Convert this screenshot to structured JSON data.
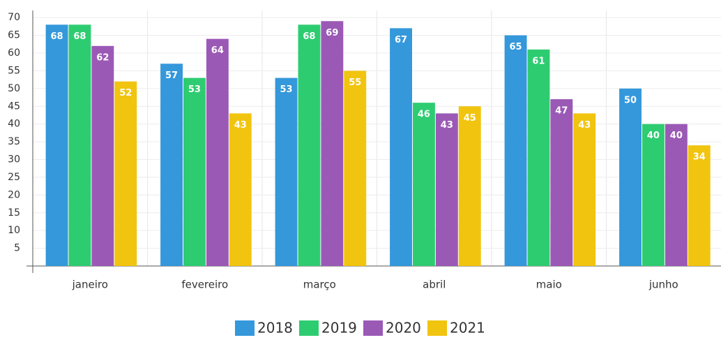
{
  "chart_data": {
    "type": "bar",
    "categories": [
      "janeiro",
      "fevereiro",
      "março",
      "abril",
      "maio",
      "junho"
    ],
    "series": [
      {
        "name": "2018",
        "color": "#3498db",
        "values": [
          68,
          57,
          53,
          67,
          65,
          50
        ]
      },
      {
        "name": "2019",
        "color": "#2ecc71",
        "values": [
          68,
          53,
          68,
          46,
          61,
          40
        ]
      },
      {
        "name": "2020",
        "color": "#9b59b6",
        "values": [
          62,
          64,
          69,
          43,
          47,
          40
        ]
      },
      {
        "name": "2021",
        "color": "#f1c40f",
        "values": [
          52,
          43,
          55,
          45,
          43,
          34
        ]
      }
    ],
    "ylim": [
      0,
      72
    ],
    "yticks": [
      5,
      10,
      15,
      20,
      25,
      30,
      35,
      40,
      45,
      50,
      55,
      60,
      65,
      70
    ],
    "grid": true,
    "legend": "bottom"
  }
}
